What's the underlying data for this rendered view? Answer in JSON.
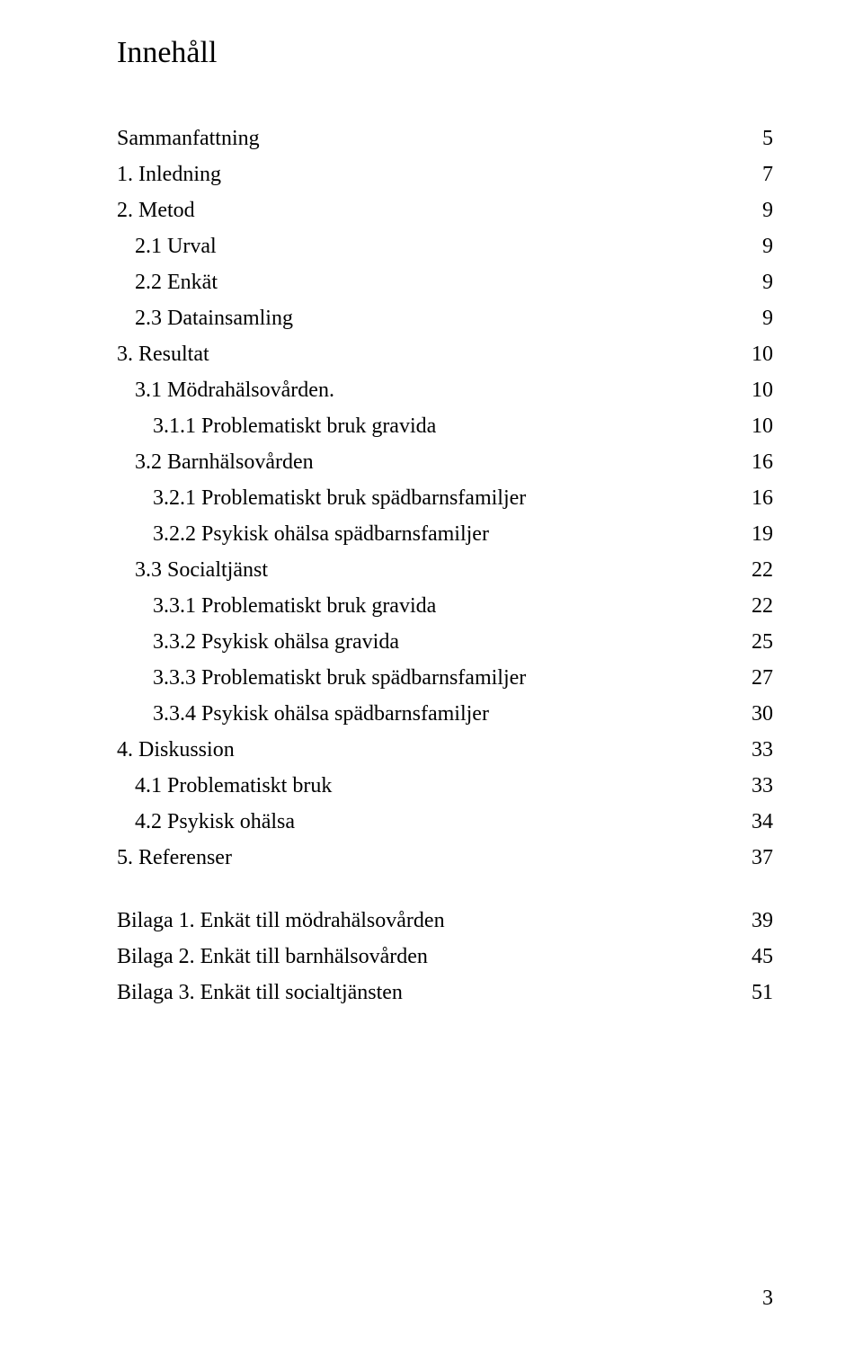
{
  "title": "Innehåll",
  "title_fontsize": 34,
  "title_color": "#000000",
  "toc": {
    "fontsize": 24,
    "line_height": 40,
    "text_color": "#000000",
    "rows": [
      {
        "label": "Sammanfattning",
        "page": "5",
        "indent": 0,
        "gap_after": false
      },
      {
        "label": "1. Inledning",
        "page": "7",
        "indent": 0,
        "gap_after": false
      },
      {
        "label": "2. Metod",
        "page": "9",
        "indent": 0,
        "gap_after": false
      },
      {
        "label": "2.1 Urval",
        "page": "9",
        "indent": 1,
        "gap_after": false
      },
      {
        "label": "2.2 Enkät",
        "page": "9",
        "indent": 1,
        "gap_after": false
      },
      {
        "label": "2.3 Datainsamling",
        "page": "9",
        "indent": 1,
        "gap_after": false
      },
      {
        "label": "3. Resultat",
        "page": "10",
        "indent": 0,
        "gap_after": false
      },
      {
        "label": "3.1 Mödrahälsovården.",
        "page": "10",
        "indent": 1,
        "gap_after": false
      },
      {
        "label": "3.1.1 Problematiskt bruk gravida",
        "page": "10",
        "indent": 2,
        "gap_after": false
      },
      {
        "label": "3.2 Barnhälsovården",
        "page": "16",
        "indent": 1,
        "gap_after": false
      },
      {
        "label": "3.2.1 Problematiskt bruk spädbarnsfamiljer",
        "page": "16",
        "indent": 2,
        "gap_after": false
      },
      {
        "label": "3.2.2 Psykisk ohälsa spädbarnsfamiljer",
        "page": "19",
        "indent": 2,
        "gap_after": false
      },
      {
        "label": "3.3 Socialtjänst",
        "page": "22",
        "indent": 1,
        "gap_after": false
      },
      {
        "label": "3.3.1 Problematiskt bruk gravida",
        "page": "22",
        "indent": 2,
        "gap_after": false
      },
      {
        "label": "3.3.2 Psykisk ohälsa gravida",
        "page": "25",
        "indent": 2,
        "gap_after": false
      },
      {
        "label": "3.3.3 Problematiskt bruk spädbarnsfamiljer",
        "page": "27",
        "indent": 2,
        "gap_after": false
      },
      {
        "label": "3.3.4 Psykisk ohälsa spädbarnsfamiljer",
        "page": "30",
        "indent": 2,
        "gap_after": false
      },
      {
        "label": "4. Diskussion",
        "page": "33",
        "indent": 0,
        "gap_after": false
      },
      {
        "label": "4.1 Problematiskt bruk",
        "page": "33",
        "indent": 1,
        "gap_after": false
      },
      {
        "label": "4.2 Psykisk ohälsa",
        "page": "34",
        "indent": 1,
        "gap_after": false
      },
      {
        "label": "5. Referenser",
        "page": "37",
        "indent": 0,
        "gap_after": true
      },
      {
        "label": "Bilaga 1. Enkät till mödrahälsovården",
        "page": "39",
        "indent": 0,
        "gap_after": false
      },
      {
        "label": "Bilaga 2. Enkät till barnhälsovården",
        "page": "45",
        "indent": 0,
        "gap_after": false
      },
      {
        "label": "Bilaga 3. Enkät till socialtjänsten",
        "page": "51",
        "indent": 0,
        "gap_after": false
      }
    ]
  },
  "footer_page_number": "3",
  "footer_fontsize": 24,
  "background_color": "#ffffff"
}
